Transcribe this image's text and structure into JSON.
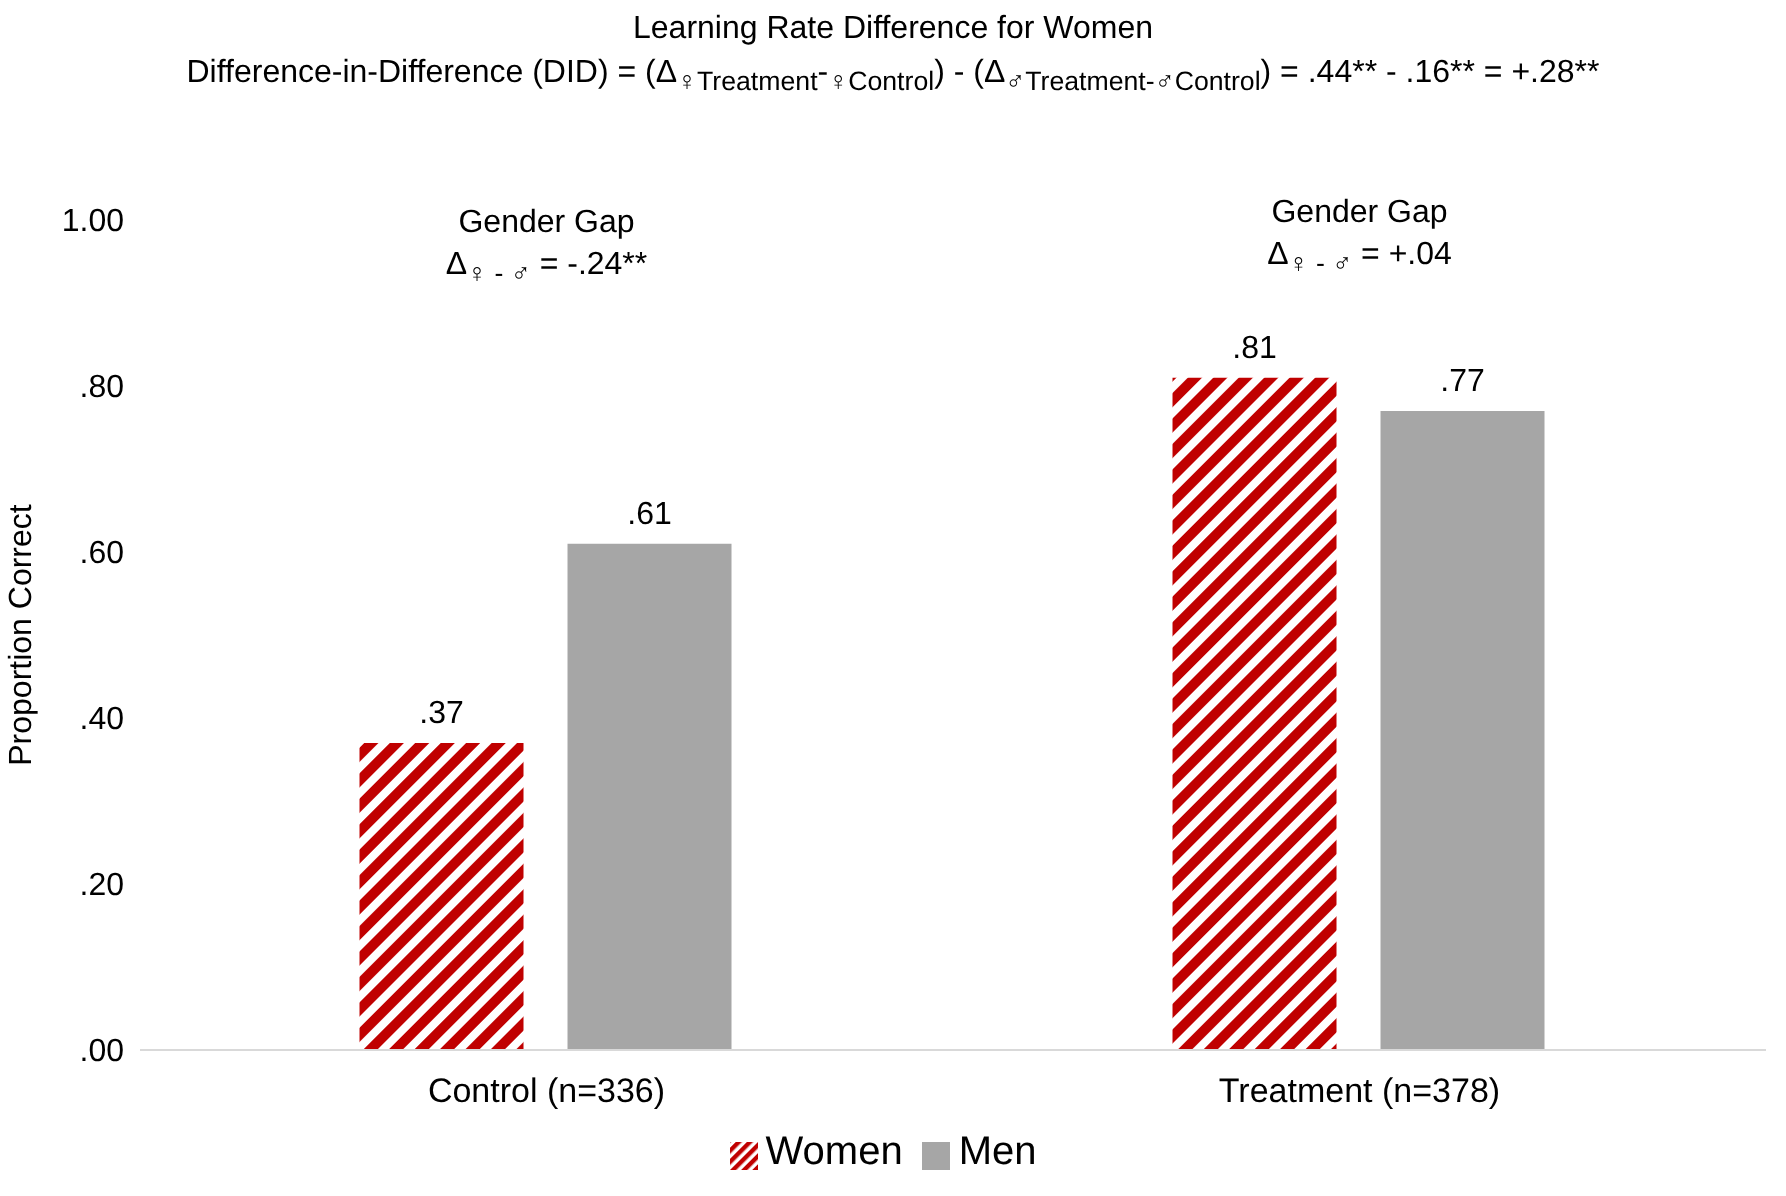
{
  "chart_data": {
    "type": "bar",
    "title": "Learning  Rate Difference  for Women",
    "subtitle": "Difference-in-Difference  (DID)  = (Δ$_{♀Treatment}$-$_{♀Control}$) - (Δ$_{♂Treatment-♂Control}$) = .44** - .16** = +.28**",
    "categories": [
      "Control (n=336)",
      "Treatment (n=378)"
    ],
    "series": [
      {
        "name": "Women",
        "color": "#c00000",
        "values": [
          0.37,
          0.81
        ],
        "value_labels": [
          ".37",
          ".81"
        ]
      },
      {
        "name": "Men",
        "color": "#a6a6a6",
        "values": [
          0.61,
          0.77
        ],
        "value_labels": [
          ".61",
          ".77"
        ]
      }
    ],
    "ylabel": "Proportion Correct",
    "ylim": [
      0,
      1
    ],
    "yticks": [
      {
        "value": 0,
        "label": ".00"
      },
      {
        "value": 0.2,
        "label": ".20"
      },
      {
        "value": 0.4,
        "label": ".40"
      },
      {
        "value": 0.6,
        "label": ".60"
      },
      {
        "value": 0.8,
        "label": ".80"
      },
      {
        "value": 1,
        "label": "1.00"
      }
    ],
    "annotations": [
      "Gender Gap",
      "Δ$_{♀ - ♂}$ = -.24**",
      "Gender Gap",
      "Δ$_{♀ - ♂}$ = +.04"
    ],
    "grid": false,
    "legend": "bottom"
  }
}
